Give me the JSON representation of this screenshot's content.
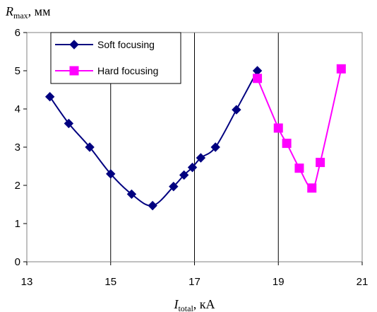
{
  "chart_data": {
    "type": "line",
    "title": "",
    "ylabel": {
      "main": "R",
      "sub": "max",
      "unit": ", мм"
    },
    "xlabel": {
      "main": "I",
      "sub": "total",
      "unit": ", кА"
    },
    "xlim": [
      13,
      21
    ],
    "ylim": [
      0,
      6
    ],
    "xticks": [
      13,
      15,
      17,
      19,
      21
    ],
    "yticks": [
      0,
      1,
      2,
      3,
      4,
      5,
      6
    ],
    "grid": {
      "x": true,
      "y": false
    },
    "legend_position": "top-left",
    "series": [
      {
        "name": "Soft focusing",
        "color": "#000080",
        "marker": "diamond",
        "points": [
          [
            13.55,
            4.32
          ],
          [
            14.0,
            3.62
          ],
          [
            14.5,
            3.0
          ],
          [
            15.0,
            2.3
          ],
          [
            15.5,
            1.77
          ],
          [
            16.0,
            1.47
          ],
          [
            16.5,
            1.97
          ],
          [
            16.75,
            2.27
          ],
          [
            16.95,
            2.47
          ],
          [
            17.15,
            2.72
          ],
          [
            17.5,
            3.0
          ],
          [
            18.0,
            3.98
          ],
          [
            18.5,
            5.0
          ]
        ]
      },
      {
        "name": "Hard focusing",
        "color": "#ff00ff",
        "marker": "square",
        "points": [
          [
            18.5,
            4.8
          ],
          [
            19.0,
            3.5
          ],
          [
            19.2,
            3.1
          ],
          [
            19.5,
            2.45
          ],
          [
            19.8,
            1.93
          ],
          [
            20.0,
            2.6
          ],
          [
            20.5,
            5.05
          ]
        ]
      }
    ]
  }
}
